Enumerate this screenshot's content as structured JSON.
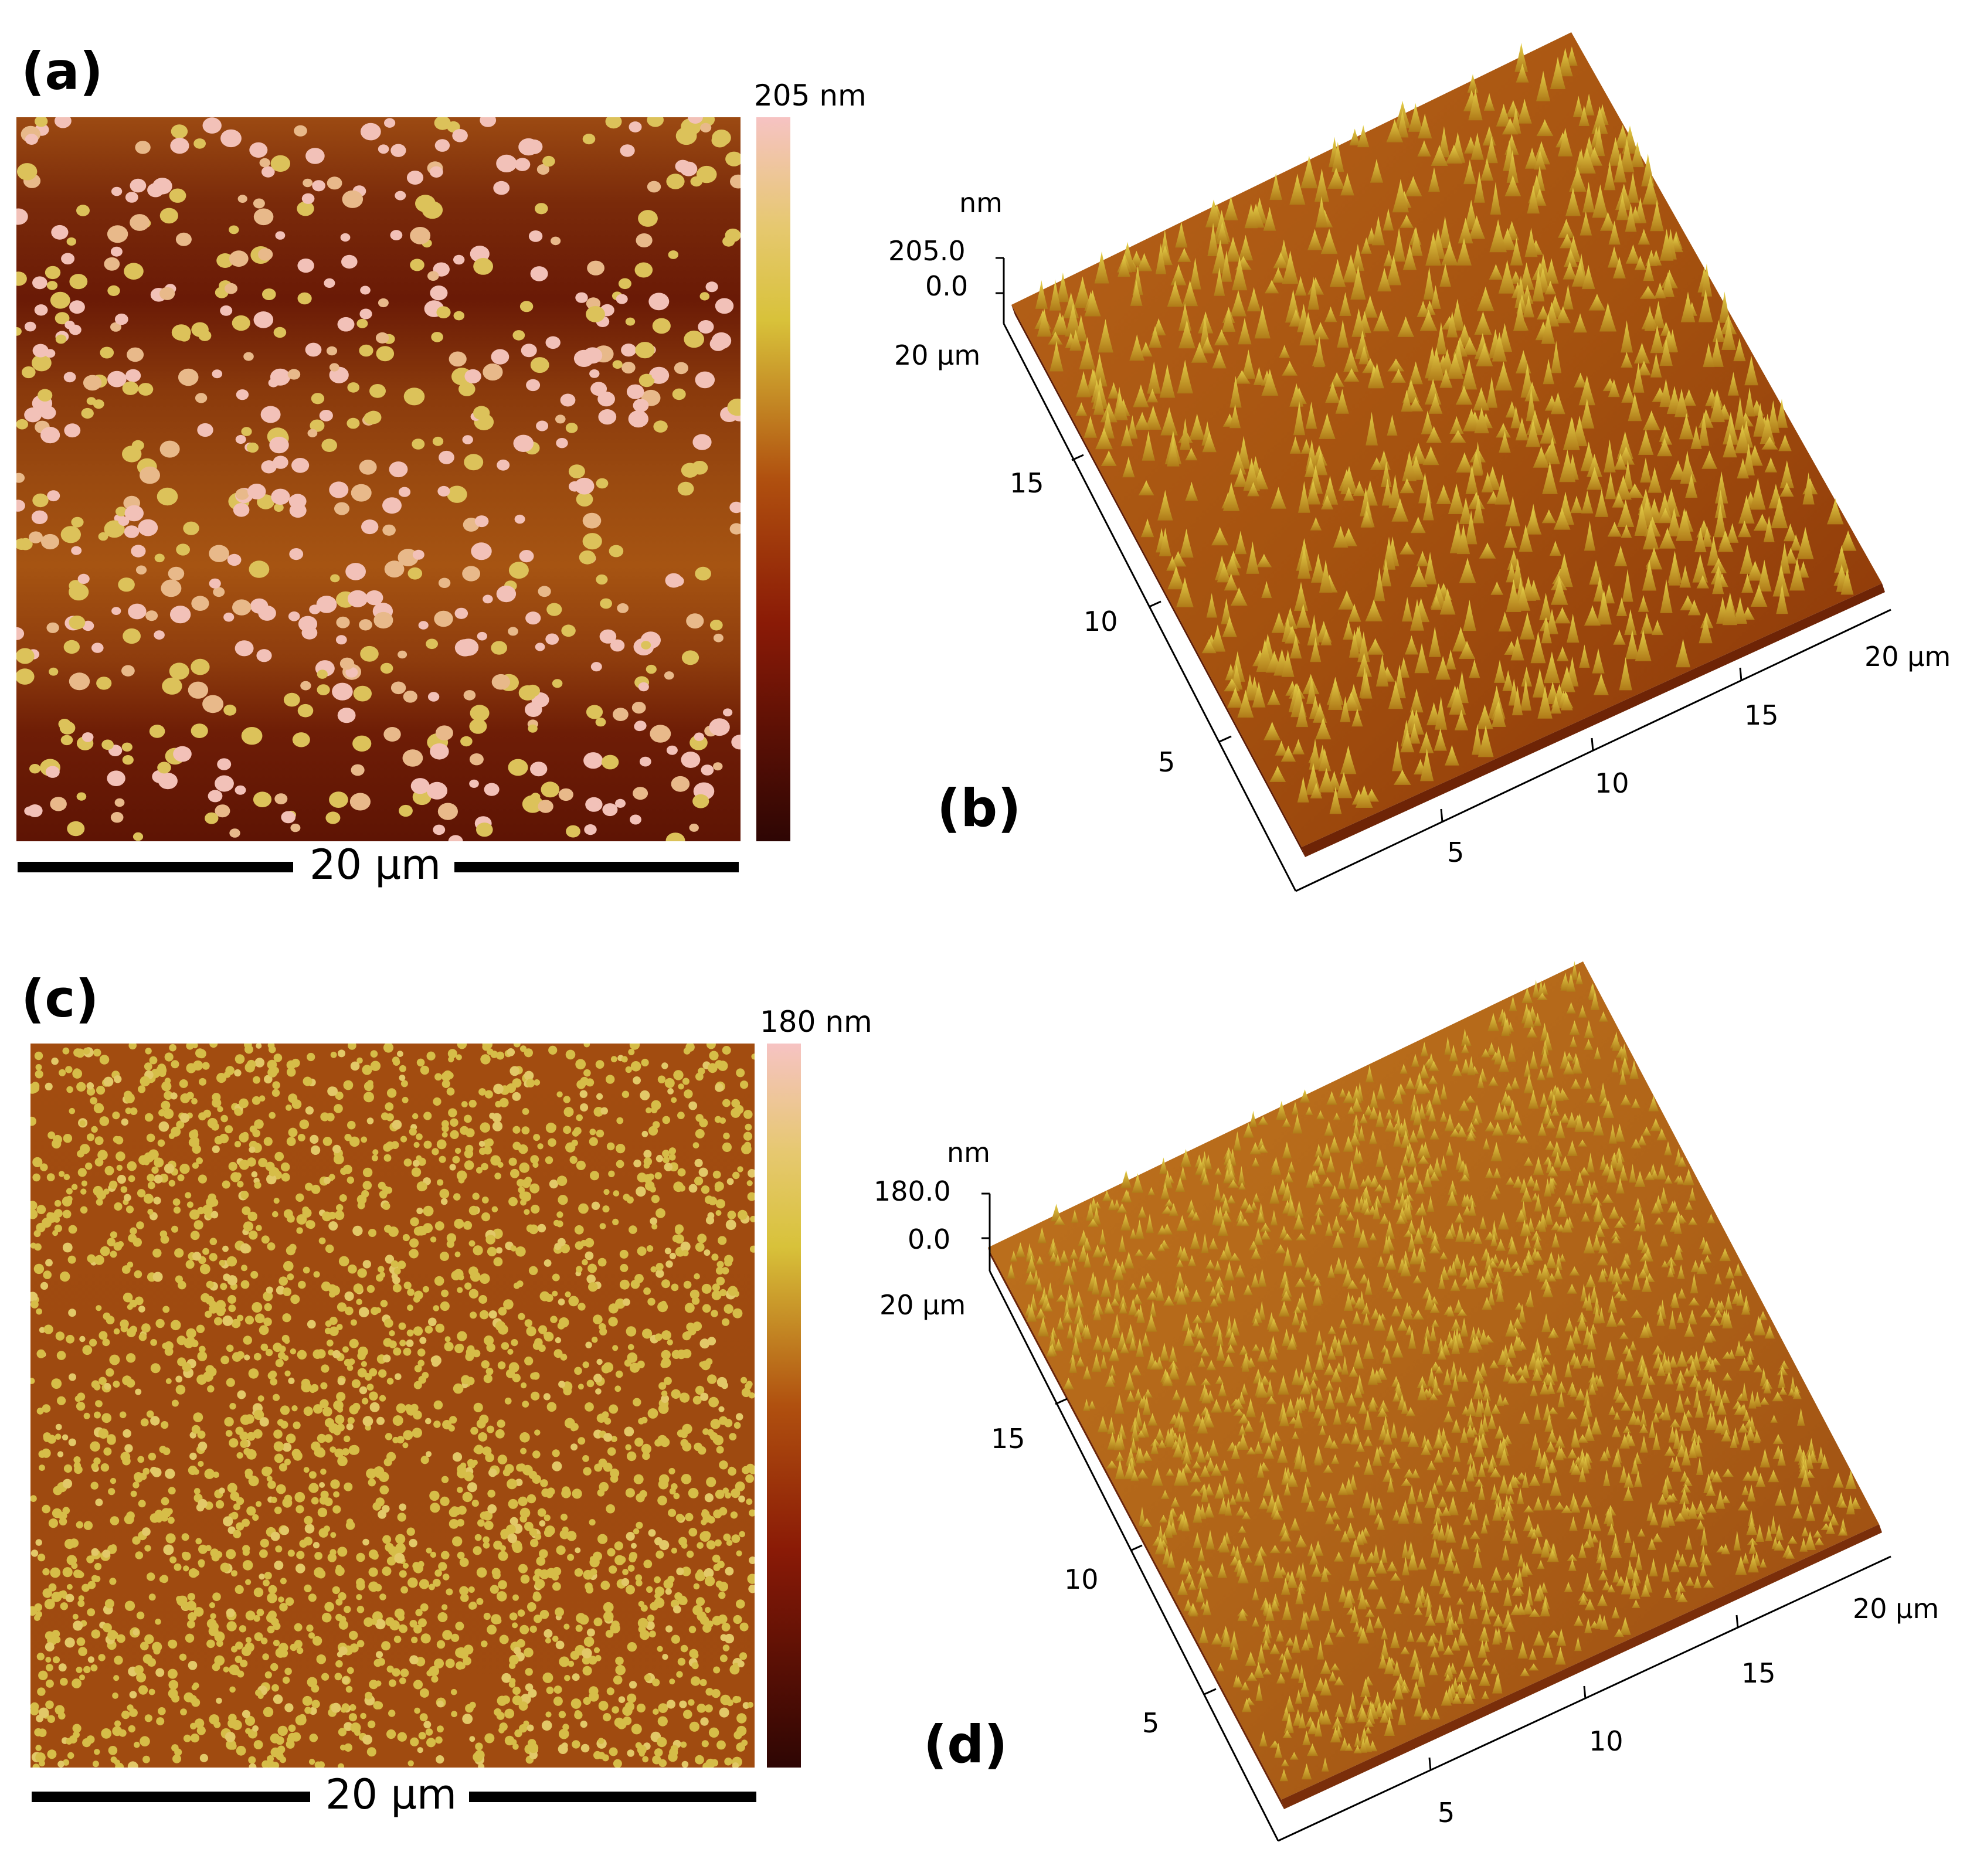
{
  "panels": {
    "a": {
      "letter": "(a)",
      "colorbar_max": "205 nm",
      "scale_bar": "20 µm"
    },
    "b": {
      "letter": "(b)",
      "z_unit": "nm",
      "z_max": "205.0",
      "z_min": "0.0",
      "left_axis_end": "20 µm",
      "left_ticks": [
        "15",
        "10",
        "5"
      ],
      "right_axis_end": "20 µm",
      "right_ticks": [
        "5",
        "10",
        "15"
      ]
    },
    "c": {
      "letter": "(c)",
      "colorbar_max": "180 nm",
      "scale_bar": "20 µm"
    },
    "d": {
      "letter": "(d)",
      "z_unit": "nm",
      "z_max": "180.0",
      "z_min": "0.0",
      "left_axis_end": "20 µm",
      "left_ticks": [
        "15",
        "10",
        "5"
      ],
      "right_axis_end": "20 µm",
      "right_ticks": [
        "5",
        "10",
        "15"
      ]
    }
  },
  "colors": {
    "height_low": "#3d0805",
    "height_mid": "#b0500f",
    "height_high_yellow": "#d9c23c",
    "height_peak": "#f6c3c3",
    "surface_base": "#a8540f",
    "surface_peak": "#d6bb2e"
  }
}
